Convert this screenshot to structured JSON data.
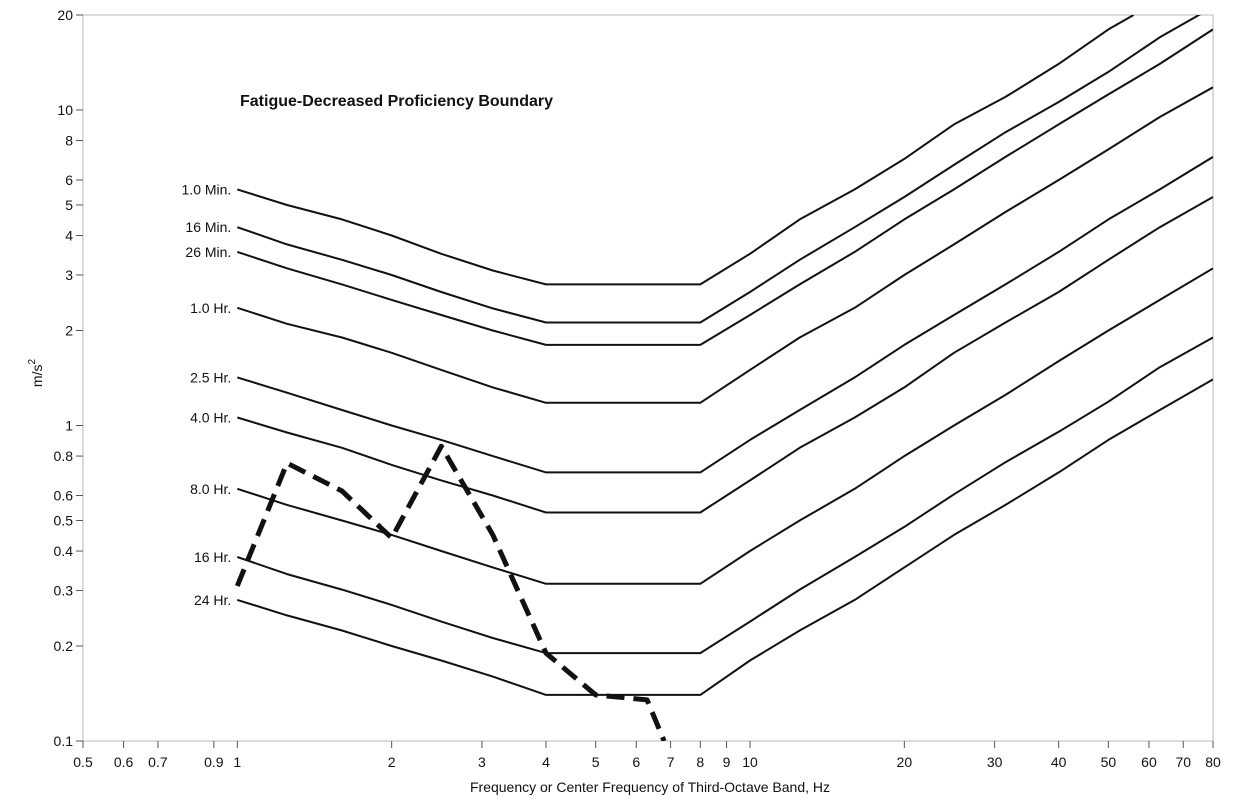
{
  "chart_data": {
    "type": "line",
    "title": "Fatigue-Decreased Proficiency Boundary",
    "xlabel": "Frequency or Center Frequency of Third-Octave Band, Hz",
    "ylabel": "m/s",
    "ylabel_superscript": "2",
    "x_scale": "log",
    "y_scale": "log",
    "xlim": [
      0.5,
      80
    ],
    "ylim": [
      0.1,
      20
    ],
    "grid": false,
    "x_ticks": [
      {
        "value": 0.5,
        "label": "0.5"
      },
      {
        "value": 0.6,
        "label": "0.6"
      },
      {
        "value": 0.7,
        "label": "0.7"
      },
      {
        "value": 0.9,
        "label": "0.9"
      },
      {
        "value": 1,
        "label": "1"
      },
      {
        "value": 2,
        "label": "2"
      },
      {
        "value": 3,
        "label": "3"
      },
      {
        "value": 4,
        "label": "4"
      },
      {
        "value": 5,
        "label": "5"
      },
      {
        "value": 6,
        "label": "6"
      },
      {
        "value": 7,
        "label": "7"
      },
      {
        "value": 8,
        "label": "8"
      },
      {
        "value": 9,
        "label": "9"
      },
      {
        "value": 10,
        "label": "10"
      },
      {
        "value": 20,
        "label": "20"
      },
      {
        "value": 30,
        "label": "30"
      },
      {
        "value": 40,
        "label": "40"
      },
      {
        "value": 50,
        "label": "50"
      },
      {
        "value": 60,
        "label": "60"
      },
      {
        "value": 70,
        "label": "70"
      },
      {
        "value": 80,
        "label": "80"
      }
    ],
    "y_ticks": [
      {
        "value": 0.1,
        "label": "0.1"
      },
      {
        "value": 0.2,
        "label": "0.2"
      },
      {
        "value": 0.3,
        "label": "0.3"
      },
      {
        "value": 0.4,
        "label": "0.4"
      },
      {
        "value": 0.5,
        "label": "0.5"
      },
      {
        "value": 0.6,
        "label": "0.6"
      },
      {
        "value": 0.8,
        "label": "0.8"
      },
      {
        "value": 1,
        "label": "1"
      },
      {
        "value": 2,
        "label": "2"
      },
      {
        "value": 3,
        "label": "3"
      },
      {
        "value": 4,
        "label": "4"
      },
      {
        "value": 5,
        "label": "5"
      },
      {
        "value": 6,
        "label": "6"
      },
      {
        "value": 8,
        "label": "8"
      },
      {
        "value": 10,
        "label": "10"
      },
      {
        "value": 20,
        "label": "20"
      }
    ],
    "series": [
      {
        "name": "1.0 Min.",
        "style": "solid",
        "color": "#111111",
        "points": [
          [
            1,
            5.6
          ],
          [
            1.25,
            5
          ],
          [
            1.6,
            4.5
          ],
          [
            2,
            4
          ],
          [
            2.5,
            3.5
          ],
          [
            3.15,
            3.1
          ],
          [
            4,
            2.8
          ],
          [
            8,
            2.8
          ],
          [
            10,
            3.5
          ],
          [
            12.5,
            4.5
          ],
          [
            16,
            5.6
          ],
          [
            20,
            7
          ],
          [
            25,
            9
          ],
          [
            31.5,
            11
          ],
          [
            40,
            14
          ],
          [
            50,
            18
          ],
          [
            56,
            20
          ]
        ]
      },
      {
        "name": "16 Min.",
        "style": "solid",
        "color": "#111111",
        "points": [
          [
            1,
            4.25
          ],
          [
            1.25,
            3.75
          ],
          [
            1.6,
            3.35
          ],
          [
            2,
            3
          ],
          [
            2.5,
            2.65
          ],
          [
            3.15,
            2.35
          ],
          [
            4,
            2.12
          ],
          [
            8,
            2.12
          ],
          [
            10,
            2.65
          ],
          [
            12.5,
            3.35
          ],
          [
            16,
            4.25
          ],
          [
            20,
            5.3
          ],
          [
            25,
            6.7
          ],
          [
            31.5,
            8.5
          ],
          [
            40,
            10.6
          ],
          [
            50,
            13.2
          ],
          [
            63,
            17
          ],
          [
            80,
            21.2
          ]
        ]
      },
      {
        "name": "26 Min.",
        "style": "solid",
        "color": "#111111",
        "points": [
          [
            1,
            3.55
          ],
          [
            1.25,
            3.15
          ],
          [
            1.6,
            2.8
          ],
          [
            2,
            2.5
          ],
          [
            2.5,
            2.24
          ],
          [
            3.15,
            2
          ],
          [
            4,
            1.8
          ],
          [
            8,
            1.8
          ],
          [
            10,
            2.24
          ],
          [
            12.5,
            2.8
          ],
          [
            16,
            3.55
          ],
          [
            20,
            4.5
          ],
          [
            25,
            5.6
          ],
          [
            31.5,
            7.1
          ],
          [
            40,
            9
          ],
          [
            50,
            11.2
          ],
          [
            63,
            14
          ],
          [
            80,
            18
          ]
        ]
      },
      {
        "name": "1.0 Hr.",
        "style": "solid",
        "color": "#111111",
        "points": [
          [
            1,
            2.36
          ],
          [
            1.25,
            2.1
          ],
          [
            1.6,
            1.9
          ],
          [
            2,
            1.7
          ],
          [
            2.5,
            1.5
          ],
          [
            3.15,
            1.32
          ],
          [
            4,
            1.18
          ],
          [
            8,
            1.18
          ],
          [
            10,
            1.5
          ],
          [
            12.5,
            1.9
          ],
          [
            16,
            2.36
          ],
          [
            20,
            3
          ],
          [
            25,
            3.75
          ],
          [
            31.5,
            4.75
          ],
          [
            40,
            6
          ],
          [
            50,
            7.5
          ],
          [
            63,
            9.5
          ],
          [
            80,
            11.8
          ]
        ]
      },
      {
        "name": "2.5 Hr.",
        "style": "solid",
        "color": "#111111",
        "points": [
          [
            1,
            1.42
          ],
          [
            1.25,
            1.27
          ],
          [
            1.6,
            1.12
          ],
          [
            2,
            1
          ],
          [
            2.5,
            0.9
          ],
          [
            3.15,
            0.8
          ],
          [
            4,
            0.71
          ],
          [
            8,
            0.71
          ],
          [
            10,
            0.9
          ],
          [
            12.5,
            1.12
          ],
          [
            16,
            1.42
          ],
          [
            20,
            1.8
          ],
          [
            25,
            2.24
          ],
          [
            31.5,
            2.8
          ],
          [
            40,
            3.55
          ],
          [
            50,
            4.5
          ],
          [
            63,
            5.6
          ],
          [
            80,
            7.1
          ]
        ]
      },
      {
        "name": "4.0 Hr.",
        "style": "solid",
        "color": "#111111",
        "points": [
          [
            1,
            1.06
          ],
          [
            1.25,
            0.95
          ],
          [
            1.6,
            0.85
          ],
          [
            2,
            0.75
          ],
          [
            2.5,
            0.67
          ],
          [
            3.15,
            0.6
          ],
          [
            4,
            0.53
          ],
          [
            8,
            0.53
          ],
          [
            10,
            0.67
          ],
          [
            12.5,
            0.85
          ],
          [
            16,
            1.06
          ],
          [
            20,
            1.32
          ],
          [
            25,
            1.7
          ],
          [
            31.5,
            2.12
          ],
          [
            40,
            2.65
          ],
          [
            50,
            3.35
          ],
          [
            63,
            4.25
          ],
          [
            80,
            5.3
          ]
        ]
      },
      {
        "name": "8.0 Hr.",
        "style": "solid",
        "color": "#111111",
        "points": [
          [
            1,
            0.63
          ],
          [
            1.25,
            0.56
          ],
          [
            1.6,
            0.5
          ],
          [
            2,
            0.45
          ],
          [
            2.5,
            0.4
          ],
          [
            3.15,
            0.355
          ],
          [
            4,
            0.315
          ],
          [
            8,
            0.315
          ],
          [
            10,
            0.4
          ],
          [
            12.5,
            0.5
          ],
          [
            16,
            0.63
          ],
          [
            20,
            0.8
          ],
          [
            25,
            1
          ],
          [
            31.5,
            1.25
          ],
          [
            40,
            1.6
          ],
          [
            50,
            2
          ],
          [
            63,
            2.5
          ],
          [
            80,
            3.15
          ]
        ]
      },
      {
        "name": "16 Hr.",
        "style": "solid",
        "color": "#111111",
        "points": [
          [
            1,
            0.383
          ],
          [
            1.25,
            0.338
          ],
          [
            1.6,
            0.302
          ],
          [
            2,
            0.27
          ],
          [
            2.5,
            0.239
          ],
          [
            3.15,
            0.212
          ],
          [
            4,
            0.19
          ],
          [
            8,
            0.19
          ],
          [
            10,
            0.239
          ],
          [
            12.5,
            0.302
          ],
          [
            16,
            0.383
          ],
          [
            20,
            0.477
          ],
          [
            25,
            0.605
          ],
          [
            31.5,
            0.765
          ],
          [
            40,
            0.955
          ],
          [
            50,
            1.19
          ],
          [
            63,
            1.53
          ],
          [
            80,
            1.9
          ]
        ]
      },
      {
        "name": "24 Hr.",
        "style": "solid",
        "color": "#111111",
        "points": [
          [
            1,
            0.28
          ],
          [
            1.25,
            0.25
          ],
          [
            1.6,
            0.224
          ],
          [
            2,
            0.2
          ],
          [
            2.5,
            0.18
          ],
          [
            3.15,
            0.16
          ],
          [
            4,
            0.14
          ],
          [
            8,
            0.14
          ],
          [
            10,
            0.18
          ],
          [
            12.5,
            0.224
          ],
          [
            16,
            0.28
          ],
          [
            20,
            0.355
          ],
          [
            25,
            0.45
          ],
          [
            31.5,
            0.56
          ],
          [
            40,
            0.71
          ],
          [
            50,
            0.9
          ],
          [
            63,
            1.12
          ],
          [
            80,
            1.4
          ]
        ]
      },
      {
        "name": "",
        "style": "dashed",
        "color": "#111111",
        "points": [
          [
            1,
            0.31
          ],
          [
            1.25,
            0.76
          ],
          [
            1.6,
            0.62
          ],
          [
            2,
            0.44
          ],
          [
            2.5,
            0.86
          ],
          [
            3.15,
            0.45
          ],
          [
            4,
            0.19
          ],
          [
            5,
            0.14
          ],
          [
            6.3,
            0.135
          ],
          [
            6.8,
            0.1
          ]
        ]
      }
    ]
  }
}
